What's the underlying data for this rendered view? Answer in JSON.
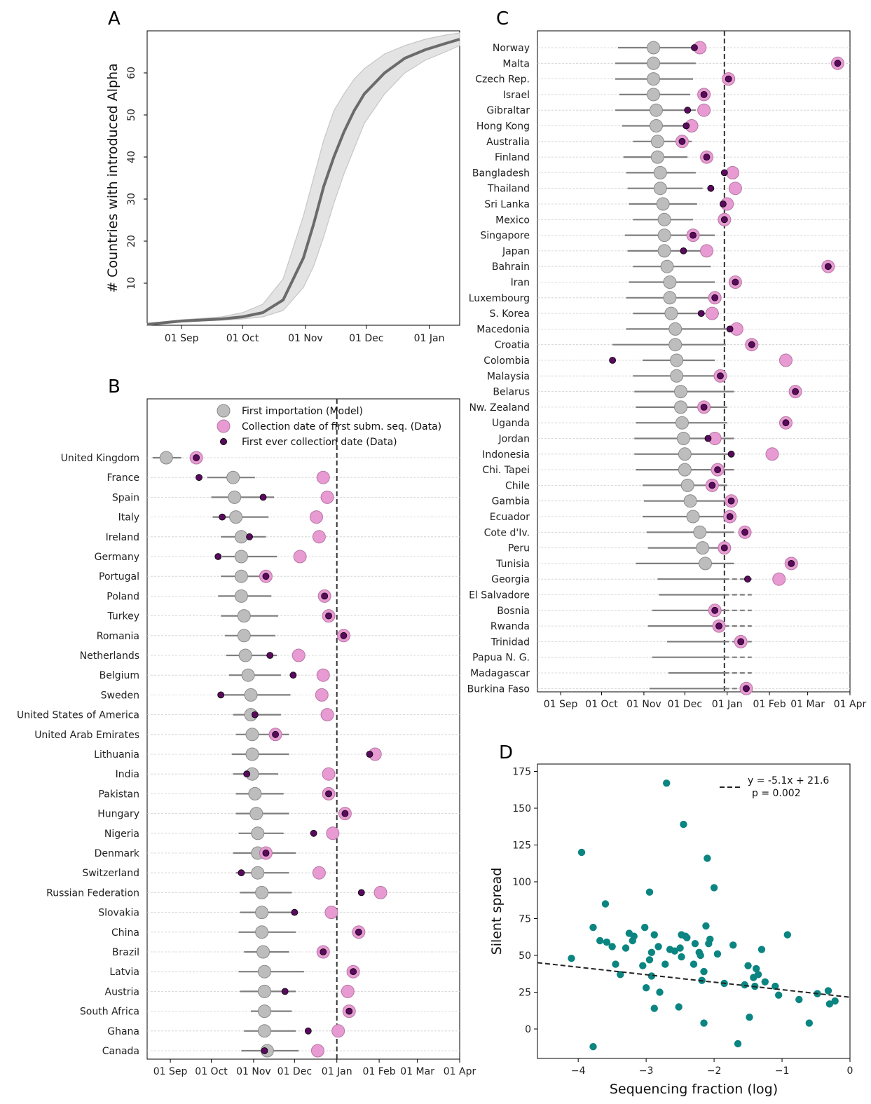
{
  "chart_data": [
    {
      "panel": "A",
      "type": "area",
      "ylabel": "# Countries with introduced Alpha",
      "xticks": [
        "01 Sep",
        "01 Oct",
        "01 Nov",
        "01 Dec",
        "01 Jan"
      ],
      "yticks": [
        10,
        20,
        30,
        40,
        50,
        60
      ],
      "x_days": [
        -17,
        0,
        20,
        30,
        40,
        50,
        60,
        65,
        70,
        75,
        80,
        85,
        90,
        100,
        110,
        120,
        130,
        137
      ],
      "median": [
        0.2,
        1,
        1.5,
        2,
        3,
        6,
        16,
        24,
        33,
        40,
        46,
        51,
        55,
        60,
        63.5,
        65.5,
        67,
        68
      ],
      "lower": [
        0.1,
        0.8,
        1.2,
        1.5,
        2,
        3.5,
        9,
        14,
        21,
        29,
        36,
        42,
        48,
        55,
        60,
        63,
        65,
        66.5
      ],
      "upper": [
        0.4,
        1.3,
        2,
        3,
        5,
        11,
        26,
        35,
        44,
        51,
        55,
        58.5,
        61,
        64.5,
        66.5,
        68,
        69,
        69.5
      ]
    },
    {
      "panel": "B",
      "type": "scatter",
      "legend": [
        "First importation (Model)",
        "Collection date of first subm. seq. (Data)",
        "First ever collection date (Data)"
      ],
      "xticks": [
        "01 Sep",
        "01 Oct",
        "01 Nov",
        "01 Dec",
        "01 Jan",
        "01 Feb",
        "01 Mar",
        "01 Apr"
      ],
      "vline_day": 122,
      "rows": [
        {
          "country": "United Kingdom",
          "model": -3,
          "lo": -13,
          "hi": 8,
          "sub": 19,
          "ever": 19
        },
        {
          "country": "France",
          "model": 46,
          "lo": 27,
          "hi": 62,
          "sub": 112,
          "ever": 21
        },
        {
          "country": "Spain",
          "model": 47,
          "lo": 30,
          "hi": 76,
          "sub": 115,
          "ever": 68
        },
        {
          "country": "Italy",
          "model": 48,
          "lo": 31,
          "hi": 72,
          "sub": 107,
          "ever": 38
        },
        {
          "country": "Ireland",
          "model": 52,
          "lo": 37,
          "hi": 70,
          "sub": 109,
          "ever": 58
        },
        {
          "country": "Germany",
          "model": 52,
          "lo": 38,
          "hi": 78,
          "sub": 95,
          "ever": 35
        },
        {
          "country": "Portugal",
          "model": 52,
          "lo": 37,
          "hi": 73,
          "sub": 70,
          "ever": 70
        },
        {
          "country": "Poland",
          "model": 52,
          "lo": 35,
          "hi": 74,
          "sub": 113,
          "ever": 113
        },
        {
          "country": "Turkey",
          "model": 54,
          "lo": 37,
          "hi": 79,
          "sub": 116,
          "ever": 116
        },
        {
          "country": "Romania",
          "model": 54,
          "lo": 40,
          "hi": 77,
          "sub": 127,
          "ever": 127
        },
        {
          "country": "Netherlands",
          "model": 55,
          "lo": 41,
          "hi": 78,
          "sub": 94,
          "ever": 73
        },
        {
          "country": "Belgium",
          "model": 57,
          "lo": 43,
          "hi": 81,
          "sub": 112,
          "ever": 90
        },
        {
          "country": "Sweden",
          "model": 59,
          "lo": 38,
          "hi": 88,
          "sub": 111,
          "ever": 37
        },
        {
          "country": "United States of America",
          "model": 59,
          "lo": 46,
          "hi": 81,
          "sub": 115,
          "ever": 62
        },
        {
          "country": "United Arab Emirates",
          "model": 60,
          "lo": 48,
          "hi": 87,
          "sub": 77,
          "ever": 77
        },
        {
          "country": "Lithuania",
          "model": 60,
          "lo": 45,
          "hi": 87,
          "sub": 150,
          "ever": 146
        },
        {
          "country": "India",
          "model": 60,
          "lo": 46,
          "hi": 79,
          "sub": 116,
          "ever": 56
        },
        {
          "country": "Pakistan",
          "model": 62,
          "lo": 48,
          "hi": 83,
          "sub": 116,
          "ever": 116
        },
        {
          "country": "Hungary",
          "model": 63,
          "lo": 48,
          "hi": 87,
          "sub": 128,
          "ever": 128
        },
        {
          "country": "Nigeria",
          "model": 64,
          "lo": 50,
          "hi": 83,
          "sub": 119,
          "ever": 105
        },
        {
          "country": "Denmark",
          "model": 64,
          "lo": 46,
          "hi": 92,
          "sub": 70,
          "ever": 70
        },
        {
          "country": "Switzerland",
          "model": 64,
          "lo": 48,
          "hi": 87,
          "sub": 109,
          "ever": 52
        },
        {
          "country": "Russian Federation",
          "model": 67,
          "lo": 51,
          "hi": 89,
          "sub": 154,
          "ever": 140
        },
        {
          "country": "Slovakia",
          "model": 67,
          "lo": 51,
          "hi": 91,
          "sub": 118,
          "ever": 91
        },
        {
          "country": "China",
          "model": 67,
          "lo": 50,
          "hi": 92,
          "sub": 138,
          "ever": 138
        },
        {
          "country": "Brazil",
          "model": 68,
          "lo": 54,
          "hi": 87,
          "sub": 112,
          "ever": 112
        },
        {
          "country": "Latvia",
          "model": 69,
          "lo": 50,
          "hi": 98,
          "sub": 134,
          "ever": 134
        },
        {
          "country": "Austria",
          "model": 69,
          "lo": 51,
          "hi": 92,
          "sub": 130,
          "ever": 84
        },
        {
          "country": "South Africa",
          "model": 69,
          "lo": 59,
          "hi": 89,
          "sub": 131,
          "ever": 131
        },
        {
          "country": "Ghana",
          "model": 69,
          "lo": 54,
          "hi": 92,
          "sub": 123,
          "ever": 101
        },
        {
          "country": "Canada",
          "model": 71,
          "lo": 52,
          "hi": 94,
          "sub": 108,
          "ever": 69
        }
      ]
    },
    {
      "panel": "C",
      "type": "scatter",
      "xticks": [
        "01 Sep",
        "01 Oct",
        "01 Nov",
        "01 Dec",
        "01 Jan",
        "01 Feb",
        "01 Mar",
        "01 Apr"
      ],
      "vline_day": 120,
      "rows": [
        {
          "country": "Norway",
          "model": 68,
          "lo": 42,
          "hi": 101,
          "sub": 102,
          "ever": 98,
          "dash": false
        },
        {
          "country": "Malta",
          "model": 68,
          "lo": 40,
          "hi": 99,
          "sub": 203,
          "ever": 203,
          "dash": false
        },
        {
          "country": "Czech Rep.",
          "model": 68,
          "lo": 40,
          "hi": 97,
          "sub": 123,
          "ever": 123,
          "dash": false
        },
        {
          "country": "Israel",
          "model": 68,
          "lo": 43,
          "hi": 95,
          "sub": 105,
          "ever": 105,
          "dash": false
        },
        {
          "country": "Gibraltar",
          "model": 70,
          "lo": 40,
          "hi": 99,
          "sub": 105,
          "ever": 93,
          "dash": false
        },
        {
          "country": "Hong Kong",
          "model": 70,
          "lo": 45,
          "hi": 97,
          "sub": 96,
          "ever": 92,
          "dash": false
        },
        {
          "country": "Australia",
          "model": 71,
          "lo": 53,
          "hi": 96,
          "sub": 89,
          "ever": 89,
          "dash": false
        },
        {
          "country": "Finland",
          "model": 71,
          "lo": 46,
          "hi": 93,
          "sub": 107,
          "ever": 107,
          "dash": false
        },
        {
          "country": "Bangladesh",
          "model": 73,
          "lo": 48,
          "hi": 99,
          "sub": 126,
          "ever": 120,
          "dash": false
        },
        {
          "country": "Thailand",
          "model": 73,
          "lo": 49,
          "hi": 104,
          "sub": 128,
          "ever": 110,
          "dash": false
        },
        {
          "country": "Sri Lanka",
          "model": 75,
          "lo": 50,
          "hi": 100,
          "sub": 122,
          "ever": 119,
          "dash": false
        },
        {
          "country": "Mexico",
          "model": 76,
          "lo": 53,
          "hi": 97,
          "sub": 120,
          "ever": 120,
          "dash": false
        },
        {
          "country": "Singapore",
          "model": 76,
          "lo": 47,
          "hi": 113,
          "sub": 97,
          "ever": 97,
          "dash": false
        },
        {
          "country": "Japan",
          "model": 76,
          "lo": 49,
          "hi": 108,
          "sub": 107,
          "ever": 90,
          "dash": false
        },
        {
          "country": "Bahrain",
          "model": 78,
          "lo": 53,
          "hi": 110,
          "sub": 196,
          "ever": 196,
          "dash": false
        },
        {
          "country": "Iran",
          "model": 80,
          "lo": 50,
          "hi": 113,
          "sub": 128,
          "ever": 128,
          "dash": false
        },
        {
          "country": "Luxembourg",
          "model": 80,
          "lo": 48,
          "hi": 116,
          "sub": 113,
          "ever": 113,
          "dash": false
        },
        {
          "country": "S. Korea",
          "model": 81,
          "lo": 53,
          "hi": 116,
          "sub": 111,
          "ever": 103,
          "dash": false
        },
        {
          "country": "Macedonia",
          "model": 84,
          "lo": 48,
          "hi": 124,
          "sub": 129,
          "ever": 124,
          "dash": false
        },
        {
          "country": "Croatia",
          "model": 84,
          "lo": 38,
          "hi": 121,
          "sub": 140,
          "ever": 140,
          "dash": false
        },
        {
          "country": "Colombia",
          "model": 85,
          "lo": 60,
          "hi": 113,
          "sub": 165,
          "ever": 38,
          "dash": false
        },
        {
          "country": "Malaysia",
          "model": 85,
          "lo": 53,
          "hi": 118,
          "sub": 117,
          "ever": 117,
          "dash": false
        },
        {
          "country": "Belarus",
          "model": 88,
          "lo": 54,
          "hi": 127,
          "sub": 172,
          "ever": 172,
          "dash": false
        },
        {
          "country": "Nw. Zealand",
          "model": 88,
          "lo": 55,
          "hi": 122,
          "sub": 105,
          "ever": 105,
          "dash": false
        },
        {
          "country": "Uganda",
          "model": 89,
          "lo": 55,
          "hi": 122,
          "sub": 165,
          "ever": 165,
          "dash": false
        },
        {
          "country": "Jordan",
          "model": 90,
          "lo": 54,
          "hi": 127,
          "sub": 113,
          "ever": 108,
          "dash": false
        },
        {
          "country": "Indonesia",
          "model": 91,
          "lo": 54,
          "hi": 127,
          "sub": 155,
          "ever": 125,
          "dash": false
        },
        {
          "country": "Chi. Tapei",
          "model": 91,
          "lo": 55,
          "hi": 127,
          "sub": 115,
          "ever": 115,
          "dash": false
        },
        {
          "country": "Chile",
          "model": 93,
          "lo": 60,
          "hi": 122,
          "sub": 111,
          "ever": 111,
          "dash": false
        },
        {
          "country": "Gambia",
          "model": 95,
          "lo": 61,
          "hi": 127,
          "sub": 125,
          "ever": 125,
          "dash": false
        },
        {
          "country": "Ecuador",
          "model": 97,
          "lo": 60,
          "hi": 125,
          "sub": 124,
          "ever": 124,
          "dash": false
        },
        {
          "country": "Cote d'Iv.",
          "model": 102,
          "lo": 63,
          "hi": 127,
          "sub": 135,
          "ever": 135,
          "dash": false
        },
        {
          "country": "Peru",
          "model": 104,
          "lo": 64,
          "hi": 122,
          "sub": 120,
          "ever": 120,
          "dash": false
        },
        {
          "country": "Tunisia",
          "model": 106,
          "lo": 55,
          "hi": 127,
          "sub": 169,
          "ever": 169,
          "dash": false
        },
        {
          "country": "Georgia",
          "model": null,
          "lo": 71,
          "hi": 122,
          "sub": 160,
          "ever": 137,
          "dash": true
        },
        {
          "country": "El Salvadore",
          "model": null,
          "lo": 72,
          "hi": 122,
          "sub": null,
          "ever": null,
          "dash": true
        },
        {
          "country": "Bosnia",
          "model": null,
          "lo": 67,
          "hi": 122,
          "sub": 113,
          "ever": 113,
          "dash": true
        },
        {
          "country": "Rwanda",
          "model": null,
          "lo": 64,
          "hi": 122,
          "sub": 116,
          "ever": 116,
          "dash": true
        },
        {
          "country": "Trinidad",
          "model": null,
          "lo": 78,
          "hi": 122,
          "sub": 132,
          "ever": 132,
          "dash": true
        },
        {
          "country": "Papua N. G.",
          "model": null,
          "lo": 67,
          "hi": 122,
          "sub": null,
          "ever": null,
          "dash": true
        },
        {
          "country": "Madagascar",
          "model": null,
          "lo": 79,
          "hi": 122,
          "sub": null,
          "ever": null,
          "dash": true
        },
        {
          "country": "Burkina Faso",
          "model": null,
          "lo": 65,
          "hi": 122,
          "sub": 136,
          "ever": 136,
          "dash": true
        }
      ]
    },
    {
      "panel": "D",
      "type": "scatter",
      "xlabel": "Sequencing fraction (log)",
      "ylabel": "Silent spread",
      "xlim": [
        -4.6,
        0
      ],
      "ylim": [
        -20,
        180
      ],
      "xticks": [
        -4,
        -3,
        -2,
        -1,
        0
      ],
      "yticks": [
        0,
        25,
        50,
        75,
        100,
        125,
        150,
        175
      ],
      "fit": {
        "slope": -5.1,
        "intercept": 21.6,
        "label1": "y = -5.1x + 21.6",
        "label2": "p = 0.002"
      },
      "points": [
        [
          -4.1,
          48
        ],
        [
          -3.78,
          -12
        ],
        [
          -3.95,
          120
        ],
        [
          -3.78,
          69
        ],
        [
          -3.68,
          60
        ],
        [
          -3.6,
          85
        ],
        [
          -3.58,
          59
        ],
        [
          -3.5,
          56
        ],
        [
          -3.45,
          44
        ],
        [
          -3.38,
          37
        ],
        [
          -3.3,
          55
        ],
        [
          -3.25,
          65
        ],
        [
          -3.2,
          60
        ],
        [
          -3.18,
          63
        ],
        [
          -3.05,
          43
        ],
        [
          -3.02,
          69
        ],
        [
          -3.0,
          28
        ],
        [
          -2.95,
          93
        ],
        [
          -2.95,
          47
        ],
        [
          -2.92,
          52
        ],
        [
          -2.92,
          36
        ],
        [
          -2.88,
          64
        ],
        [
          -2.88,
          14
        ],
        [
          -2.82,
          56
        ],
        [
          -2.8,
          25
        ],
        [
          -2.72,
          44
        ],
        [
          -2.7,
          167
        ],
        [
          -2.65,
          54
        ],
        [
          -2.58,
          53
        ],
        [
          -2.52,
          15
        ],
        [
          -2.5,
          55
        ],
        [
          -2.48,
          49
        ],
        [
          -2.48,
          64
        ],
        [
          -2.45,
          139
        ],
        [
          -2.42,
          63
        ],
        [
          -2.4,
          62
        ],
        [
          -2.3,
          44
        ],
        [
          -2.28,
          58
        ],
        [
          -2.22,
          52
        ],
        [
          -2.2,
          50
        ],
        [
          -2.18,
          33
        ],
        [
          -2.15,
          39
        ],
        [
          -2.15,
          4
        ],
        [
          -2.12,
          70
        ],
        [
          -2.1,
          116
        ],
        [
          -2.08,
          58
        ],
        [
          -2.06,
          61
        ],
        [
          -2.0,
          96
        ],
        [
          -1.95,
          51
        ],
        [
          -1.85,
          31
        ],
        [
          -1.72,
          57
        ],
        [
          -1.65,
          -10
        ],
        [
          -1.55,
          30
        ],
        [
          -1.5,
          43
        ],
        [
          -1.48,
          8
        ],
        [
          -1.42,
          35
        ],
        [
          -1.4,
          29
        ],
        [
          -1.38,
          41
        ],
        [
          -1.35,
          37
        ],
        [
          -1.3,
          54
        ],
        [
          -1.25,
          32
        ],
        [
          -1.1,
          29
        ],
        [
          -1.05,
          23
        ],
        [
          -0.92,
          64
        ],
        [
          -0.75,
          20
        ],
        [
          -0.6,
          4
        ],
        [
          -0.48,
          24
        ],
        [
          -0.32,
          26
        ],
        [
          -0.3,
          17
        ],
        [
          -0.22,
          19
        ]
      ]
    }
  ]
}
